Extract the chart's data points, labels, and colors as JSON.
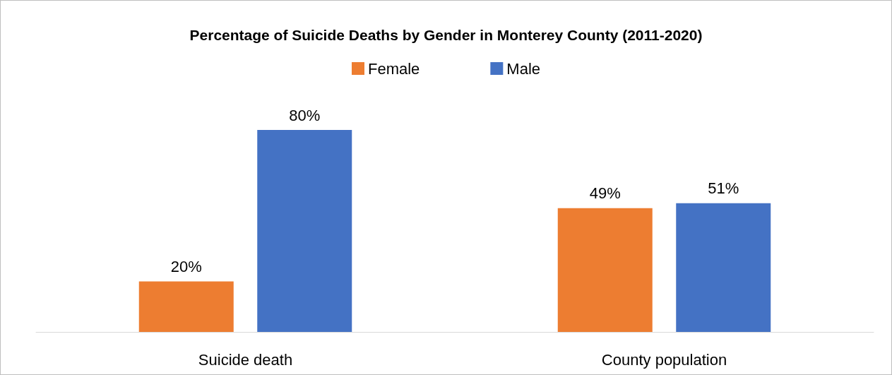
{
  "chart_data": {
    "type": "bar",
    "title": "Percentage of Suicide Deaths by Gender in Monterey County (2011-2020)",
    "categories": [
      "Suicide death",
      "County population"
    ],
    "series": [
      {
        "name": "Female",
        "color": "#ed7d31",
        "values": [
          20,
          49
        ],
        "value_labels": [
          "20%",
          "49%"
        ]
      },
      {
        "name": "Male",
        "color": "#4472c4",
        "values": [
          80,
          51
        ],
        "value_labels": [
          "80%",
          "51%"
        ]
      }
    ],
    "legend": "top"
  }
}
